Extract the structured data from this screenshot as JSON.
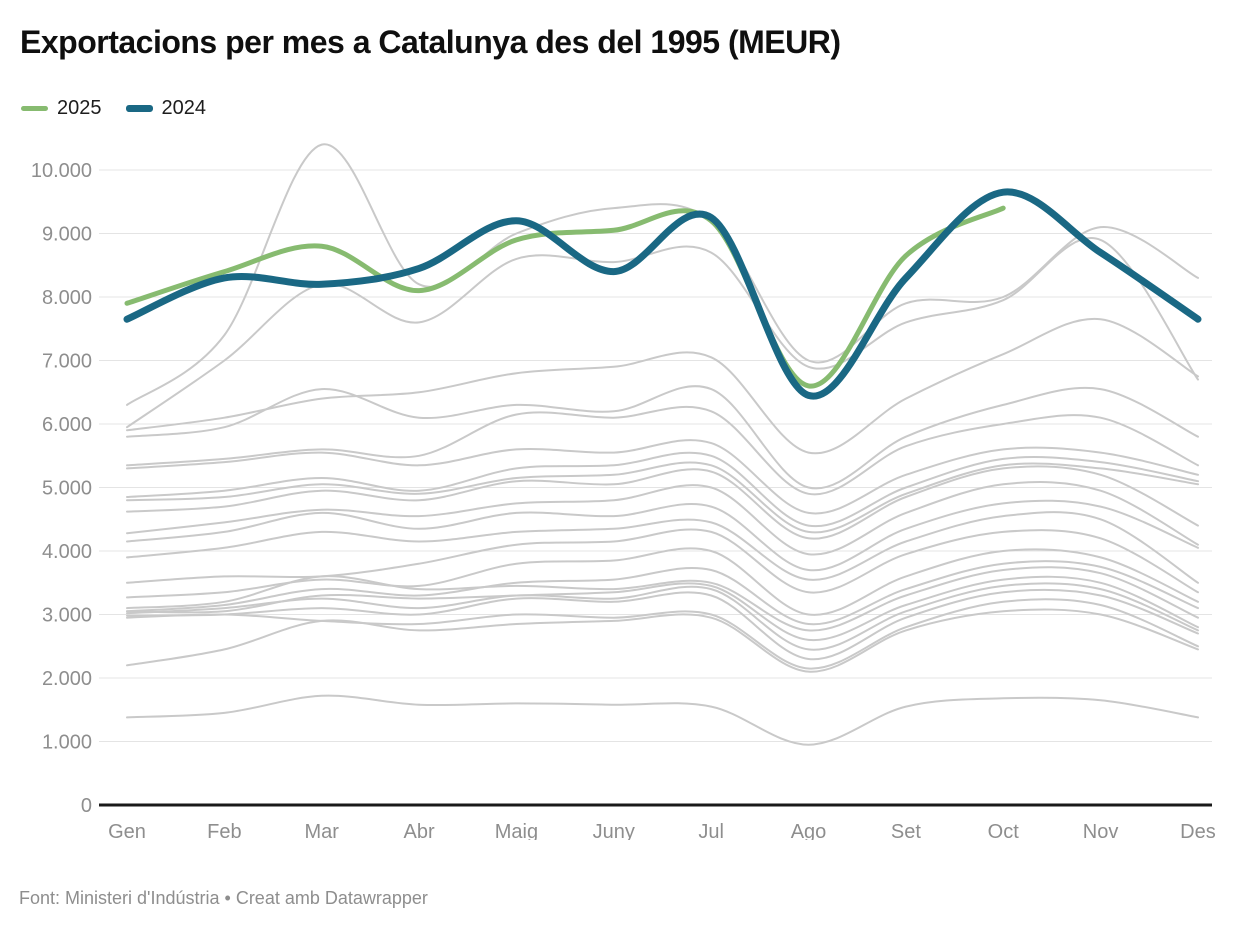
{
  "header": {
    "title": "Exportacions per mes a Catalunya des del 1995 (MEUR)"
  },
  "legend": {
    "items": [
      {
        "label": "2025",
        "color": "#87bb70"
      },
      {
        "label": "2024",
        "color": "#1a6884"
      }
    ]
  },
  "chart_data": {
    "type": "line",
    "title": "Exportacions per mes a Catalunya des del 1995 (MEUR)",
    "categories": [
      "Gen",
      "Feb",
      "Mar",
      "Abr",
      "Maig",
      "Juny",
      "Jul",
      "Ago",
      "Set",
      "Oct",
      "Nov",
      "Des"
    ],
    "series": [
      {
        "name": "2025",
        "color": "#87bb70",
        "stroke_width": 5,
        "values": [
          7900,
          8400,
          8800,
          8100,
          8900,
          9050,
          9200,
          6600,
          8650,
          9400,
          null,
          null
        ]
      },
      {
        "name": "2024",
        "color": "#1a6884",
        "stroke_width": 7,
        "values": [
          7650,
          8300,
          8200,
          8450,
          9200,
          8400,
          9250,
          6450,
          8300,
          9650,
          8700,
          7650
        ]
      }
    ],
    "background_series": {
      "color": "#c9c9c9",
      "stroke_width": 2,
      "values": [
        [
          6300,
          7400,
          10400,
          8200,
          9000,
          9400,
          9200,
          7000,
          7900,
          8000,
          9100,
          8300
        ],
        [
          5950,
          7000,
          8200,
          7600,
          8600,
          8550,
          8700,
          6900,
          7600,
          7950,
          8900,
          6700
        ],
        [
          5900,
          6100,
          6400,
          6500,
          6800,
          6900,
          7050,
          5550,
          6400,
          7100,
          7650,
          6750
        ],
        [
          5800,
          5950,
          6550,
          6100,
          6300,
          6200,
          6550,
          5000,
          5800,
          6300,
          6550,
          5800
        ],
        [
          5350,
          5450,
          5600,
          5500,
          6150,
          6100,
          6200,
          4900,
          5650,
          6000,
          6100,
          5350
        ],
        [
          5300,
          5400,
          5550,
          5350,
          5600,
          5550,
          5700,
          4600,
          5200,
          5600,
          5550,
          5200
        ],
        [
          4850,
          4950,
          5150,
          4950,
          5300,
          5350,
          5500,
          4400,
          5000,
          5450,
          5400,
          5100
        ],
        [
          4800,
          4850,
          5050,
          4900,
          5150,
          5200,
          5350,
          4300,
          4900,
          5350,
          5300,
          5050
        ],
        [
          4620,
          4700,
          4950,
          4800,
          5100,
          5050,
          5250,
          4200,
          4850,
          5300,
          5200,
          4400
        ],
        [
          4280,
          4450,
          4650,
          4550,
          4750,
          4800,
          5000,
          3950,
          4600,
          5050,
          4950,
          4100
        ],
        [
          4150,
          4300,
          4600,
          4350,
          4600,
          4550,
          4700,
          3700,
          4350,
          4750,
          4700,
          4050
        ],
        [
          3900,
          4050,
          4300,
          4150,
          4300,
          4350,
          4450,
          3550,
          4150,
          4550,
          4500,
          3500
        ],
        [
          3500,
          3600,
          3600,
          3800,
          4100,
          4150,
          4300,
          3350,
          3950,
          4300,
          4200,
          3350
        ],
        [
          3270,
          3350,
          3550,
          3450,
          3800,
          3850,
          4000,
          3000,
          3600,
          4000,
          3900,
          3200
        ],
        [
          3100,
          3200,
          3600,
          3400,
          3450,
          3400,
          3500,
          2750,
          3300,
          3700,
          3650,
          2950
        ],
        [
          3050,
          3150,
          3400,
          3300,
          3500,
          3550,
          3700,
          2850,
          3400,
          3800,
          3750,
          3100
        ],
        [
          3050,
          3050,
          3300,
          3250,
          3300,
          3350,
          3450,
          2600,
          3150,
          3550,
          3500,
          2800
        ],
        [
          3020,
          3100,
          3250,
          3100,
          3300,
          3250,
          3400,
          2450,
          3050,
          3450,
          3400,
          2750
        ],
        [
          2980,
          3000,
          3100,
          3000,
          3250,
          3200,
          3300,
          2300,
          2950,
          3350,
          3300,
          2700
        ],
        [
          2950,
          3000,
          2900,
          2850,
          3000,
          2950,
          3000,
          2150,
          2800,
          3200,
          3150,
          2500
        ],
        [
          2200,
          2450,
          2900,
          2750,
          2850,
          2900,
          2950,
          2100,
          2750,
          3050,
          3000,
          2450
        ],
        [
          1380,
          1450,
          1720,
          1580,
          1600,
          1580,
          1550,
          950,
          1550,
          1680,
          1650,
          1380
        ]
      ]
    },
    "yaxis": {
      "ticks": [
        {
          "value": 0,
          "label": "0"
        },
        {
          "value": 1000,
          "label": "1.000"
        },
        {
          "value": 2000,
          "label": "2.000"
        },
        {
          "value": 3000,
          "label": "3.000"
        },
        {
          "value": 4000,
          "label": "4.000"
        },
        {
          "value": 5000,
          "label": "5.000"
        },
        {
          "value": 6000,
          "label": "6.000"
        },
        {
          "value": 7000,
          "label": "7.000"
        },
        {
          "value": 8000,
          "label": "8.000"
        },
        {
          "value": 9000,
          "label": "9.000"
        },
        {
          "value": 10000,
          "label": "10.000"
        }
      ],
      "ylim": [
        0,
        10400
      ]
    },
    "grid": true,
    "legend_position": "top-left",
    "colors": {
      "grid_line": "#e4e4e4",
      "zero_axis": "#1a1a1a",
      "tick_text": "#8e8e8e",
      "background_line": "#c9c9c9"
    }
  },
  "footer": {
    "text": "Font: Ministeri d'Indústria • Creat amb Datawrapper"
  }
}
